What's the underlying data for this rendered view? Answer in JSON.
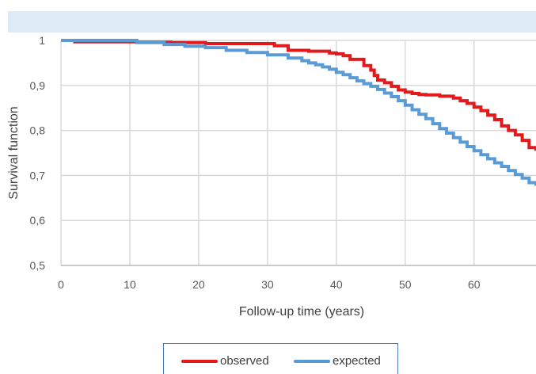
{
  "chart_data": {
    "type": "line",
    "step": true,
    "xlabel": "Follow-up time (years)",
    "ylabel": "Survival function",
    "xlim": [
      0,
      69
    ],
    "ylim": [
      0.5,
      1
    ],
    "xticks": [
      "0",
      "10",
      "20",
      "30",
      "40",
      "50",
      "60"
    ],
    "xtick_values": [
      0,
      10,
      20,
      30,
      40,
      50,
      60
    ],
    "yticks": [
      "0,5",
      "0,6",
      "0,7",
      "0,8",
      "0,9",
      "1"
    ],
    "ytick_values": [
      0.5,
      0.6,
      0.7,
      0.8,
      0.9,
      1.0
    ],
    "grid": true,
    "legend_position": "bottom",
    "series": [
      {
        "name": "observed",
        "color": "#e31a1c",
        "x": [
          0,
          2,
          6,
          11,
          16,
          21,
          31,
          33,
          36,
          39,
          40,
          41,
          42,
          44,
          45,
          45.5,
          46,
          47,
          48,
          49,
          50,
          51,
          52,
          53,
          55,
          57,
          58,
          59,
          60,
          61,
          62,
          63,
          64,
          65,
          66,
          67,
          68,
          69
        ],
        "y": [
          1,
          0.997,
          0.997,
          0.996,
          0.995,
          0.993,
          0.988,
          0.978,
          0.976,
          0.972,
          0.97,
          0.966,
          0.958,
          0.944,
          0.934,
          0.922,
          0.912,
          0.906,
          0.898,
          0.89,
          0.885,
          0.882,
          0.88,
          0.879,
          0.876,
          0.872,
          0.866,
          0.86,
          0.852,
          0.844,
          0.834,
          0.824,
          0.81,
          0.8,
          0.79,
          0.778,
          0.762,
          0.755
        ]
      },
      {
        "name": "expected",
        "color": "#5b9bd5",
        "x": [
          0,
          11,
          15,
          18,
          21,
          24,
          27,
          30,
          33,
          35,
          36,
          37,
          38,
          39,
          40,
          41,
          42,
          43,
          44,
          45,
          46,
          47,
          48,
          49,
          50,
          51,
          52,
          53,
          54,
          55,
          56,
          57,
          58,
          59,
          60,
          61,
          62,
          63,
          64,
          65,
          66,
          67,
          68,
          69
        ],
        "y": [
          1,
          0.995,
          0.991,
          0.987,
          0.984,
          0.978,
          0.973,
          0.968,
          0.961,
          0.955,
          0.95,
          0.946,
          0.941,
          0.936,
          0.929,
          0.924,
          0.917,
          0.91,
          0.904,
          0.898,
          0.891,
          0.883,
          0.875,
          0.866,
          0.856,
          0.846,
          0.836,
          0.826,
          0.815,
          0.804,
          0.794,
          0.784,
          0.774,
          0.764,
          0.755,
          0.746,
          0.737,
          0.728,
          0.72,
          0.711,
          0.702,
          0.694,
          0.684,
          0.677
        ]
      }
    ]
  }
}
